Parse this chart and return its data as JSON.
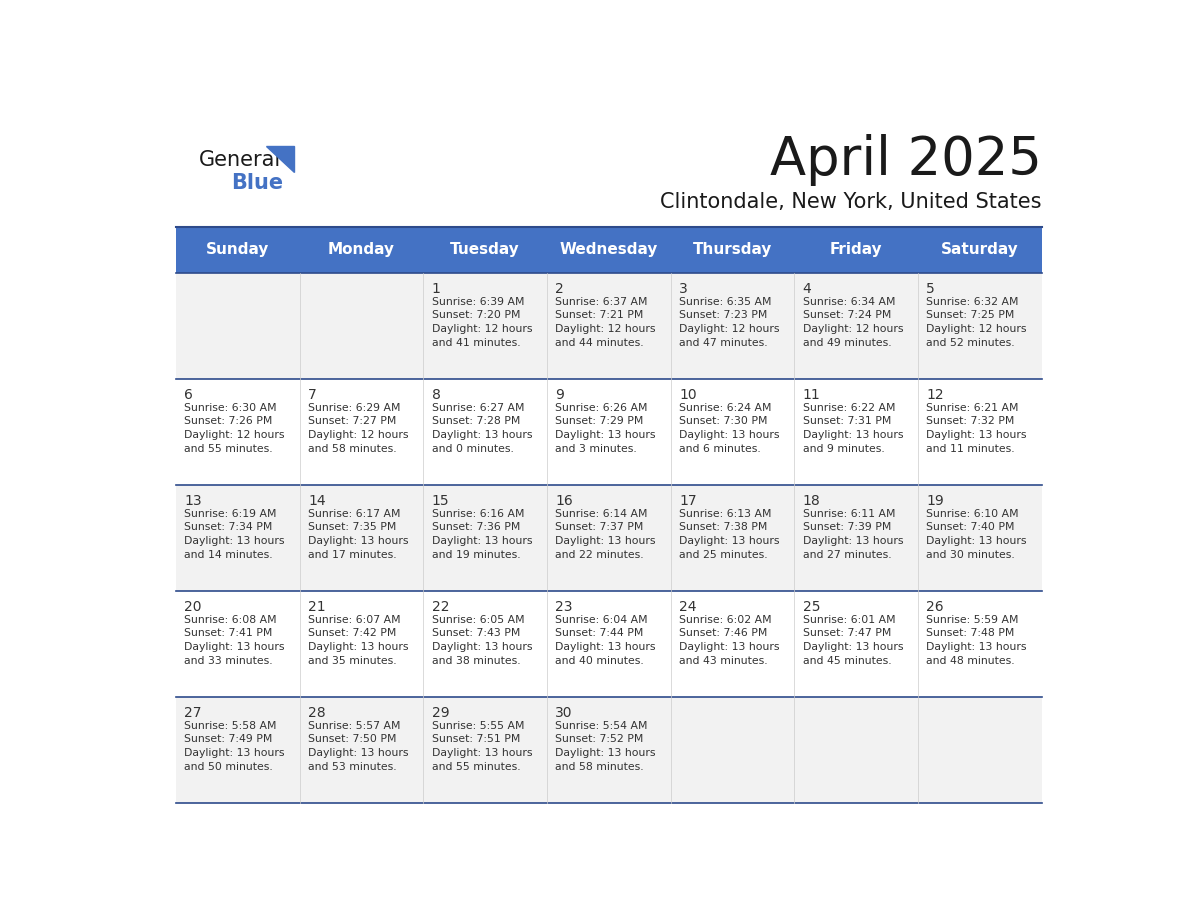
{
  "title": "April 2025",
  "subtitle": "Clintondale, New York, United States",
  "header_bg": "#4472C4",
  "header_text_color": "#FFFFFF",
  "row_bg_even": "#FFFFFF",
  "row_bg_odd": "#F2F2F2",
  "border_color": "#2E4B8B",
  "text_color": "#333333",
  "days_of_week": [
    "Sunday",
    "Monday",
    "Tuesday",
    "Wednesday",
    "Thursday",
    "Friday",
    "Saturday"
  ],
  "weeks": [
    [
      {
        "day": "",
        "info": ""
      },
      {
        "day": "",
        "info": ""
      },
      {
        "day": "1",
        "info": "Sunrise: 6:39 AM\nSunset: 7:20 PM\nDaylight: 12 hours\nand 41 minutes."
      },
      {
        "day": "2",
        "info": "Sunrise: 6:37 AM\nSunset: 7:21 PM\nDaylight: 12 hours\nand 44 minutes."
      },
      {
        "day": "3",
        "info": "Sunrise: 6:35 AM\nSunset: 7:23 PM\nDaylight: 12 hours\nand 47 minutes."
      },
      {
        "day": "4",
        "info": "Sunrise: 6:34 AM\nSunset: 7:24 PM\nDaylight: 12 hours\nand 49 minutes."
      },
      {
        "day": "5",
        "info": "Sunrise: 6:32 AM\nSunset: 7:25 PM\nDaylight: 12 hours\nand 52 minutes."
      }
    ],
    [
      {
        "day": "6",
        "info": "Sunrise: 6:30 AM\nSunset: 7:26 PM\nDaylight: 12 hours\nand 55 minutes."
      },
      {
        "day": "7",
        "info": "Sunrise: 6:29 AM\nSunset: 7:27 PM\nDaylight: 12 hours\nand 58 minutes."
      },
      {
        "day": "8",
        "info": "Sunrise: 6:27 AM\nSunset: 7:28 PM\nDaylight: 13 hours\nand 0 minutes."
      },
      {
        "day": "9",
        "info": "Sunrise: 6:26 AM\nSunset: 7:29 PM\nDaylight: 13 hours\nand 3 minutes."
      },
      {
        "day": "10",
        "info": "Sunrise: 6:24 AM\nSunset: 7:30 PM\nDaylight: 13 hours\nand 6 minutes."
      },
      {
        "day": "11",
        "info": "Sunrise: 6:22 AM\nSunset: 7:31 PM\nDaylight: 13 hours\nand 9 minutes."
      },
      {
        "day": "12",
        "info": "Sunrise: 6:21 AM\nSunset: 7:32 PM\nDaylight: 13 hours\nand 11 minutes."
      }
    ],
    [
      {
        "day": "13",
        "info": "Sunrise: 6:19 AM\nSunset: 7:34 PM\nDaylight: 13 hours\nand 14 minutes."
      },
      {
        "day": "14",
        "info": "Sunrise: 6:17 AM\nSunset: 7:35 PM\nDaylight: 13 hours\nand 17 minutes."
      },
      {
        "day": "15",
        "info": "Sunrise: 6:16 AM\nSunset: 7:36 PM\nDaylight: 13 hours\nand 19 minutes."
      },
      {
        "day": "16",
        "info": "Sunrise: 6:14 AM\nSunset: 7:37 PM\nDaylight: 13 hours\nand 22 minutes."
      },
      {
        "day": "17",
        "info": "Sunrise: 6:13 AM\nSunset: 7:38 PM\nDaylight: 13 hours\nand 25 minutes."
      },
      {
        "day": "18",
        "info": "Sunrise: 6:11 AM\nSunset: 7:39 PM\nDaylight: 13 hours\nand 27 minutes."
      },
      {
        "day": "19",
        "info": "Sunrise: 6:10 AM\nSunset: 7:40 PM\nDaylight: 13 hours\nand 30 minutes."
      }
    ],
    [
      {
        "day": "20",
        "info": "Sunrise: 6:08 AM\nSunset: 7:41 PM\nDaylight: 13 hours\nand 33 minutes."
      },
      {
        "day": "21",
        "info": "Sunrise: 6:07 AM\nSunset: 7:42 PM\nDaylight: 13 hours\nand 35 minutes."
      },
      {
        "day": "22",
        "info": "Sunrise: 6:05 AM\nSunset: 7:43 PM\nDaylight: 13 hours\nand 38 minutes."
      },
      {
        "day": "23",
        "info": "Sunrise: 6:04 AM\nSunset: 7:44 PM\nDaylight: 13 hours\nand 40 minutes."
      },
      {
        "day": "24",
        "info": "Sunrise: 6:02 AM\nSunset: 7:46 PM\nDaylight: 13 hours\nand 43 minutes."
      },
      {
        "day": "25",
        "info": "Sunrise: 6:01 AM\nSunset: 7:47 PM\nDaylight: 13 hours\nand 45 minutes."
      },
      {
        "day": "26",
        "info": "Sunrise: 5:59 AM\nSunset: 7:48 PM\nDaylight: 13 hours\nand 48 minutes."
      }
    ],
    [
      {
        "day": "27",
        "info": "Sunrise: 5:58 AM\nSunset: 7:49 PM\nDaylight: 13 hours\nand 50 minutes."
      },
      {
        "day": "28",
        "info": "Sunrise: 5:57 AM\nSunset: 7:50 PM\nDaylight: 13 hours\nand 53 minutes."
      },
      {
        "day": "29",
        "info": "Sunrise: 5:55 AM\nSunset: 7:51 PM\nDaylight: 13 hours\nand 55 minutes."
      },
      {
        "day": "30",
        "info": "Sunrise: 5:54 AM\nSunset: 7:52 PM\nDaylight: 13 hours\nand 58 minutes."
      },
      {
        "day": "",
        "info": ""
      },
      {
        "day": "",
        "info": ""
      },
      {
        "day": "",
        "info": ""
      }
    ]
  ],
  "logo_text_general": "General",
  "logo_text_blue": "Blue",
  "logo_triangle_color": "#4472C4"
}
